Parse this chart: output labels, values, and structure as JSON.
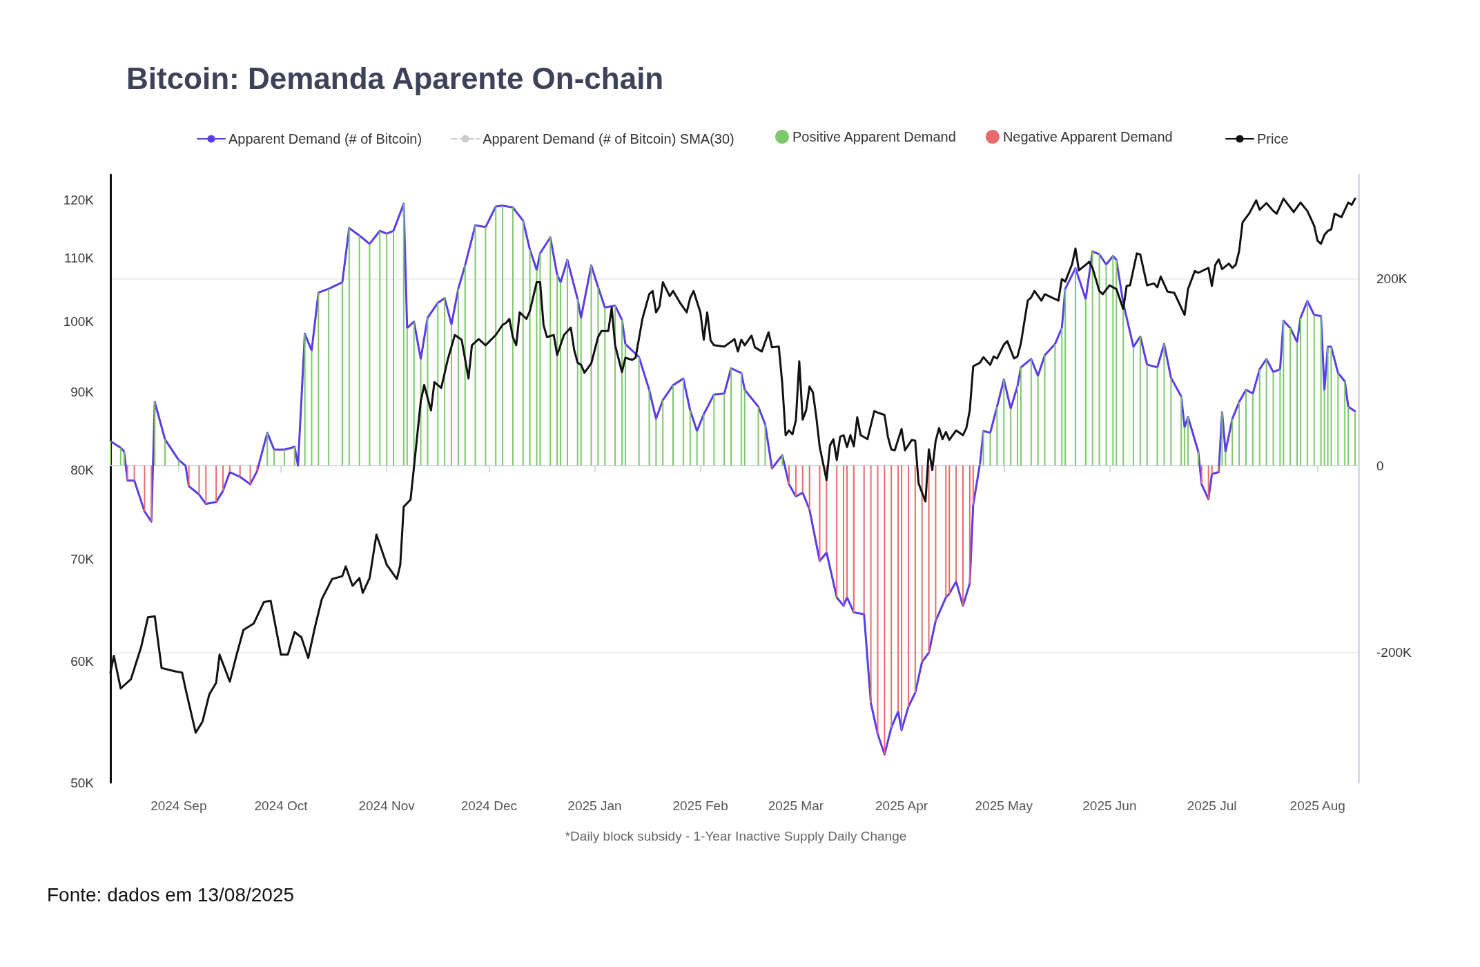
{
  "chart_data": {
    "type": "line",
    "title": "Bitcoin: Demanda Aparente On-chain",
    "annotations": [
      "*Daily block subsidy - 1-Year Inactive Supply Daily Change",
      "Fonte: dados em 13/08/2025"
    ],
    "xlim": [
      "2024-08-12",
      "2025-08-13"
    ],
    "xticks": [
      {
        "value": "2024-09-01",
        "label": "2024 Sep"
      },
      {
        "value": "2024-10-01",
        "label": "2024 Oct"
      },
      {
        "value": "2024-11-01",
        "label": "2024 Nov"
      },
      {
        "value": "2024-12-01",
        "label": "2024 Dec"
      },
      {
        "value": "2025-01-01",
        "label": "2025 Jan"
      },
      {
        "value": "2025-02-01",
        "label": "2025 Feb"
      },
      {
        "value": "2025-03-01",
        "label": "2025 Mar"
      },
      {
        "value": "2025-04-01",
        "label": "2025 Apr"
      },
      {
        "value": "2025-05-01",
        "label": "2025 May"
      },
      {
        "value": "2025-06-01",
        "label": "2025 Jun"
      },
      {
        "value": "2025-07-01",
        "label": "2025 Jul"
      },
      {
        "value": "2025-08-01",
        "label": "2025 Aug"
      }
    ],
    "ylim": [
      50,
      124.7
    ],
    "yticks": [
      {
        "value": 50,
        "label": "50K"
      },
      {
        "value": 60,
        "label": "60K"
      },
      {
        "value": 70,
        "label": "70K"
      },
      {
        "value": 80,
        "label": "80K"
      },
      {
        "value": 90,
        "label": "90K"
      },
      {
        "value": 100,
        "label": "100K"
      },
      {
        "value": 110,
        "label": "110K"
      },
      {
        "value": 120,
        "label": "120K"
      }
    ],
    "y2lim": [
      -339,
      311
    ],
    "y2ticks": [
      {
        "value": -200,
        "label": "-200K"
      },
      0,
      {
        "value": 200,
        "label": "200K"
      }
    ],
    "log": "y",
    "grid": "y",
    "legend": "top",
    "marker": "none",
    "line_style": "solid",
    "series": [
      {
        "name": "Apparent Demand (# of Bitcoin)",
        "axis": "y2",
        "color": "#5b3ce6",
        "x": [
          "2024-08-12",
          "2024-08-15",
          "2024-08-16",
          "2024-08-17",
          "2024-08-19",
          "2024-08-22",
          "2024-08-24",
          "2024-08-25",
          "2024-08-28",
          "2024-09-01",
          "2024-09-03",
          "2024-09-04",
          "2024-09-07",
          "2024-09-09",
          "2024-09-12",
          "2024-09-14",
          "2024-09-16",
          "2024-09-19",
          "2024-09-22",
          "2024-09-24",
          "2024-09-27",
          "2024-09-29",
          "2024-10-02",
          "2024-10-05",
          "2024-10-06",
          "2024-10-08",
          "2024-10-10",
          "2024-10-12",
          "2024-10-15",
          "2024-10-19",
          "2024-10-21",
          "2024-10-24",
          "2024-10-27",
          "2024-10-30",
          "2024-11-01",
          "2024-11-03",
          "2024-11-06",
          "2024-11-07",
          "2024-11-09",
          "2024-11-11",
          "2024-11-13",
          "2024-11-16",
          "2024-11-18",
          "2024-11-20",
          "2024-11-22",
          "2024-11-24",
          "2024-11-27",
          "2024-11-30",
          "2024-12-03",
          "2024-12-05",
          "2024-12-08",
          "2024-12-11",
          "2024-12-13",
          "2024-12-15",
          "2024-12-16",
          "2024-12-19",
          "2024-12-21",
          "2024-12-22",
          "2024-12-24",
          "2024-12-27",
          "2024-12-28",
          "2024-12-31",
          "2025-01-02",
          "2025-01-04",
          "2025-01-07",
          "2025-01-09",
          "2025-01-10",
          "2025-01-14",
          "2025-01-17",
          "2025-01-19",
          "2025-01-21",
          "2025-01-24",
          "2025-01-27",
          "2025-01-29",
          "2025-01-31",
          "2025-02-02",
          "2025-02-05",
          "2025-02-08",
          "2025-02-10",
          "2025-02-13",
          "2025-02-14",
          "2025-02-18",
          "2025-02-20",
          "2025-02-22",
          "2025-02-25",
          "2025-02-27",
          "2025-03-01",
          "2025-03-03",
          "2025-03-05",
          "2025-03-08",
          "2025-03-10",
          "2025-03-13",
          "2025-03-15",
          "2025-03-16",
          "2025-03-18",
          "2025-03-21",
          "2025-03-23",
          "2025-03-25",
          "2025-03-27",
          "2025-03-29",
          "2025-03-31",
          "2025-04-01",
          "2025-04-03",
          "2025-04-05",
          "2025-04-07",
          "2025-04-09",
          "2025-04-11",
          "2025-04-14",
          "2025-04-15",
          "2025-04-17",
          "2025-04-19",
          "2025-04-21",
          "2025-04-22",
          "2025-04-24",
          "2025-04-25",
          "2025-04-27",
          "2025-04-29",
          "2025-05-01",
          "2025-05-03",
          "2025-05-05",
          "2025-05-06",
          "2025-05-09",
          "2025-05-11",
          "2025-05-13",
          "2025-05-16",
          "2025-05-18",
          "2025-05-19",
          "2025-05-22",
          "2025-05-25",
          "2025-05-27",
          "2025-05-29",
          "2025-05-31",
          "2025-06-02",
          "2025-06-03",
          "2025-06-05",
          "2025-06-08",
          "2025-06-10",
          "2025-06-12",
          "2025-06-15",
          "2025-06-17",
          "2025-06-19",
          "2025-06-22",
          "2025-06-23",
          "2025-06-24",
          "2025-06-27",
          "2025-06-28",
          "2025-06-30",
          "2025-07-01",
          "2025-07-03",
          "2025-07-04",
          "2025-07-05",
          "2025-07-07",
          "2025-07-09",
          "2025-07-11",
          "2025-07-13",
          "2025-07-15",
          "2025-07-17",
          "2025-07-19",
          "2025-07-21",
          "2025-07-22",
          "2025-07-24",
          "2025-07-26",
          "2025-07-27",
          "2025-07-29",
          "2025-07-31",
          "2025-08-02",
          "2025-08-03",
          "2025-08-04",
          "2025-08-05",
          "2025-08-07",
          "2025-08-09",
          "2025-08-10",
          "2025-08-12"
        ],
        "values": [
          26,
          19,
          15,
          -16,
          -16,
          -49,
          -60,
          68,
          28,
          6,
          0,
          -22,
          -31,
          -41,
          -39,
          -27,
          -7,
          -12,
          -20,
          -6,
          35,
          17,
          17,
          20,
          0,
          141,
          123,
          185,
          189,
          196,
          254,
          246,
          237,
          251,
          248,
          251,
          280,
          147,
          154,
          114,
          158,
          174,
          179,
          151,
          189,
          214,
          257,
          255,
          277,
          278,
          276,
          262,
          231,
          209,
          227,
          244,
          204,
          196,
          220,
          178,
          158,
          214,
          191,
          169,
          171,
          156,
          130,
          116,
          81,
          50,
          70,
          86,
          93,
          59,
          37,
          55,
          76,
          77,
          104,
          99,
          81,
          63,
          44,
          -3,
          11,
          -20,
          -33,
          -29,
          -47,
          -102,
          -93,
          -141,
          -150,
          -141,
          -157,
          -159,
          -254,
          -287,
          -309,
          -280,
          -263,
          -283,
          -258,
          -243,
          -210,
          -200,
          -166,
          -141,
          -137,
          -124,
          -150,
          -126,
          -42,
          2,
          37,
          35,
          63,
          92,
          61,
          85,
          105,
          114,
          96,
          118,
          130,
          147,
          189,
          211,
          178,
          229,
          226,
          215,
          224,
          220,
          174,
          127,
          138,
          108,
          105,
          130,
          94,
          74,
          41,
          52,
          15,
          -20,
          -36,
          -9,
          -7,
          57,
          15,
          50,
          68,
          81,
          77,
          103,
          114,
          100,
          103,
          155,
          147,
          132,
          158,
          176,
          161,
          160,
          81,
          127,
          127,
          99,
          90,
          63,
          58
        ]
      },
      {
        "name": "Apparent Demand (# of Bitcoin) SMA(30)",
        "type": "line",
        "axis": "y2",
        "color": "#cccccc",
        "line_style": "dashed"
      },
      {
        "name": "Positive Apparent Demand",
        "type": "bar",
        "axis": "y2",
        "color": "#7cc86a",
        "x": [
          "2024-08-12",
          "2024-08-15",
          "2024-08-16",
          "2024-08-25",
          "2024-08-28",
          "2024-09-01",
          "2024-09-03",
          "2024-09-27",
          "2024-09-29",
          "2024-10-02",
          "2024-10-05",
          "2024-10-06",
          "2024-10-08",
          "2024-10-10",
          "2024-10-12",
          "2024-10-15",
          "2024-10-19",
          "2024-10-21",
          "2024-10-24",
          "2024-10-27",
          "2024-10-30",
          "2024-11-01",
          "2024-11-03",
          "2024-11-06",
          "2024-11-07",
          "2024-11-09",
          "2024-11-11",
          "2024-11-13",
          "2024-11-16",
          "2024-11-18",
          "2024-11-20",
          "2024-11-22",
          "2024-11-24",
          "2024-11-27",
          "2024-11-30",
          "2024-12-03",
          "2024-12-05",
          "2024-12-08",
          "2024-12-11",
          "2024-12-13",
          "2024-12-15",
          "2024-12-16",
          "2024-12-19",
          "2024-12-21",
          "2024-12-22",
          "2024-12-24",
          "2024-12-27",
          "2024-12-28",
          "2024-12-31",
          "2025-01-02",
          "2025-01-04",
          "2025-01-07",
          "2025-01-09",
          "2025-01-10",
          "2025-01-14",
          "2025-01-17",
          "2025-01-19",
          "2025-01-21",
          "2025-01-24",
          "2025-01-27",
          "2025-01-29",
          "2025-01-31",
          "2025-02-02",
          "2025-02-05",
          "2025-02-08",
          "2025-02-10",
          "2025-02-13",
          "2025-02-14",
          "2025-02-18",
          "2025-02-20",
          "2025-02-25",
          "2025-04-24",
          "2025-04-25",
          "2025-04-27",
          "2025-04-29",
          "2025-05-01",
          "2025-05-03",
          "2025-05-05",
          "2025-05-06",
          "2025-05-09",
          "2025-05-11",
          "2025-05-13",
          "2025-05-16",
          "2025-05-18",
          "2025-05-19",
          "2025-05-22",
          "2025-05-25",
          "2025-05-27",
          "2025-05-29",
          "2025-05-31",
          "2025-06-02",
          "2025-06-03",
          "2025-06-05",
          "2025-06-08",
          "2025-06-10",
          "2025-06-12",
          "2025-06-15",
          "2025-06-17",
          "2025-06-19",
          "2025-06-22",
          "2025-06-23",
          "2025-06-24",
          "2025-06-27",
          "2025-07-04",
          "2025-07-05",
          "2025-07-07",
          "2025-07-09",
          "2025-07-11",
          "2025-07-13",
          "2025-07-15",
          "2025-07-17",
          "2025-07-19",
          "2025-07-21",
          "2025-07-22",
          "2025-07-24",
          "2025-07-26",
          "2025-07-27",
          "2025-07-29",
          "2025-07-31",
          "2025-08-02",
          "2025-08-03",
          "2025-08-04",
          "2025-08-05",
          "2025-08-07",
          "2025-08-09",
          "2025-08-10",
          "2025-08-12"
        ],
        "values": [
          26,
          19,
          15,
          68,
          28,
          6,
          0,
          35,
          17,
          17,
          20,
          0,
          141,
          123,
          185,
          189,
          196,
          254,
          246,
          237,
          251,
          248,
          251,
          280,
          147,
          154,
          114,
          158,
          174,
          179,
          151,
          189,
          214,
          257,
          255,
          277,
          278,
          276,
          262,
          231,
          209,
          227,
          244,
          204,
          196,
          220,
          178,
          158,
          214,
          191,
          169,
          171,
          156,
          130,
          116,
          81,
          50,
          70,
          86,
          93,
          59,
          37,
          55,
          76,
          77,
          104,
          99,
          81,
          63,
          44,
          11,
          2,
          37,
          35,
          63,
          92,
          61,
          85,
          105,
          114,
          96,
          118,
          130,
          147,
          189,
          211,
          178,
          229,
          226,
          215,
          224,
          220,
          174,
          127,
          138,
          108,
          105,
          130,
          94,
          74,
          41,
          52,
          15,
          57,
          15,
          50,
          68,
          81,
          77,
          103,
          114,
          100,
          103,
          155,
          147,
          132,
          158,
          176,
          161,
          160,
          81,
          127,
          127,
          99,
          90,
          63,
          58
        ]
      },
      {
        "name": "Negative Apparent Demand",
        "type": "bar",
        "axis": "y2",
        "color": "#e86b6b",
        "x": [
          "2024-08-17",
          "2024-08-19",
          "2024-08-22",
          "2024-08-24",
          "2024-09-04",
          "2024-09-07",
          "2024-09-09",
          "2024-09-12",
          "2024-09-14",
          "2024-09-16",
          "2024-09-19",
          "2024-09-22",
          "2024-09-24",
          "2025-02-22",
          "2025-02-27",
          "2025-03-01",
          "2025-03-03",
          "2025-03-05",
          "2025-03-08",
          "2025-03-10",
          "2025-03-13",
          "2025-03-15",
          "2025-03-16",
          "2025-03-18",
          "2025-03-21",
          "2025-03-23",
          "2025-03-25",
          "2025-03-27",
          "2025-03-29",
          "2025-03-31",
          "2025-04-01",
          "2025-04-03",
          "2025-04-05",
          "2025-04-07",
          "2025-04-09",
          "2025-04-11",
          "2025-04-14",
          "2025-04-15",
          "2025-04-17",
          "2025-04-19",
          "2025-04-21",
          "2025-04-22",
          "2025-06-28",
          "2025-06-30",
          "2025-07-01",
          "2025-07-03"
        ],
        "values": [
          -16,
          -16,
          -49,
          -60,
          -22,
          -31,
          -41,
          -39,
          -27,
          -7,
          -12,
          -20,
          -6,
          -3,
          -20,
          -33,
          -29,
          -47,
          -102,
          -93,
          -141,
          -150,
          -141,
          -157,
          -159,
          -254,
          -287,
          -309,
          -280,
          -263,
          -283,
          -258,
          -243,
          -210,
          -200,
          -166,
          -141,
          -137,
          -124,
          -150,
          -126,
          -42,
          -20,
          -36,
          -9,
          -7
        ]
      },
      {
        "name": "Price",
        "axis": "y",
        "color": "#111111",
        "x": [
          "2024-08-12",
          "2024-08-13",
          "2024-08-15",
          "2024-08-18",
          "2024-08-21",
          "2024-08-23",
          "2024-08-25",
          "2024-08-27",
          "2024-08-31",
          "2024-09-02",
          "2024-09-03",
          "2024-09-06",
          "2024-09-08",
          "2024-09-10",
          "2024-09-12",
          "2024-09-13",
          "2024-09-16",
          "2024-09-18",
          "2024-09-20",
          "2024-09-23",
          "2024-09-26",
          "2024-09-28",
          "2024-10-01",
          "2024-10-03",
          "2024-10-05",
          "2024-10-07",
          "2024-10-09",
          "2024-10-11",
          "2024-10-13",
          "2024-10-16",
          "2024-10-19",
          "2024-10-20",
          "2024-10-22",
          "2024-10-24",
          "2024-10-25",
          "2024-10-27",
          "2024-10-29",
          "2024-11-01",
          "2024-11-04",
          "2024-11-05",
          "2024-11-06",
          "2024-11-08",
          "2024-11-09",
          "2024-11-11",
          "2024-11-12",
          "2024-11-14",
          "2024-11-15",
          "2024-11-17",
          "2024-11-19",
          "2024-11-21",
          "2024-11-23",
          "2024-11-25",
          "2024-11-26",
          "2024-11-28",
          "2024-11-30",
          "2024-12-03",
          "2024-12-05",
          "2024-12-06",
          "2024-12-07",
          "2024-12-08",
          "2024-12-09",
          "2024-12-10",
          "2024-12-12",
          "2024-12-13",
          "2024-12-15",
          "2024-12-16",
          "2024-12-17",
          "2024-12-18",
          "2024-12-20",
          "2024-12-21",
          "2024-12-23",
          "2024-12-25",
          "2024-12-26",
          "2024-12-27",
          "2024-12-28",
          "2024-12-29",
          "2024-12-31",
          "2025-01-02",
          "2025-01-03",
          "2025-01-05",
          "2025-01-06",
          "2025-01-07",
          "2025-01-09",
          "2025-01-10",
          "2025-01-12",
          "2025-01-13",
          "2025-01-15",
          "2025-01-17",
          "2025-01-18",
          "2025-01-19",
          "2025-01-20",
          "2025-01-21",
          "2025-01-23",
          "2025-01-24",
          "2025-01-26",
          "2025-01-28",
          "2025-01-29",
          "2025-01-30",
          "2025-02-01",
          "2025-02-02",
          "2025-02-03",
          "2025-02-04",
          "2025-02-05",
          "2025-02-08",
          "2025-02-11",
          "2025-02-12",
          "2025-02-13",
          "2025-02-14",
          "2025-02-16",
          "2025-02-17",
          "2025-02-19",
          "2025-02-21",
          "2025-02-22",
          "2025-02-24",
          "2025-02-25",
          "2025-02-26",
          "2025-02-27",
          "2025-02-28",
          "2025-03-01",
          "2025-03-02",
          "2025-03-03",
          "2025-03-04",
          "2025-03-05",
          "2025-03-06",
          "2025-03-07",
          "2025-03-08",
          "2025-03-10",
          "2025-03-11",
          "2025-03-12",
          "2025-03-13",
          "2025-03-14",
          "2025-03-15",
          "2025-03-16",
          "2025-03-17",
          "2025-03-18",
          "2025-03-19",
          "2025-03-20",
          "2025-03-22",
          "2025-03-24",
          "2025-03-25",
          "2025-03-27",
          "2025-03-28",
          "2025-03-29",
          "2025-03-30",
          "2025-04-01",
          "2025-04-02",
          "2025-04-04",
          "2025-04-05",
          "2025-04-06",
          "2025-04-08",
          "2025-04-09",
          "2025-04-10",
          "2025-04-11",
          "2025-04-12",
          "2025-04-13",
          "2025-04-14",
          "2025-04-15",
          "2025-04-17",
          "2025-04-19",
          "2025-04-20",
          "2025-04-21",
          "2025-04-22",
          "2025-04-24",
          "2025-04-25",
          "2025-04-27",
          "2025-04-28",
          "2025-04-29",
          "2025-05-01",
          "2025-05-02",
          "2025-05-04",
          "2025-05-05",
          "2025-05-06",
          "2025-05-08",
          "2025-05-09",
          "2025-05-10",
          "2025-05-12",
          "2025-05-13",
          "2025-05-15",
          "2025-05-17",
          "2025-05-18",
          "2025-05-19",
          "2025-05-21",
          "2025-05-22",
          "2025-05-23",
          "2025-05-25",
          "2025-05-26",
          "2025-05-27",
          "2025-05-29",
          "2025-05-30",
          "2025-06-01",
          "2025-06-03",
          "2025-06-05",
          "2025-06-06",
          "2025-06-07",
          "2025-06-09",
          "2025-06-10",
          "2025-06-12",
          "2025-06-14",
          "2025-06-15",
          "2025-06-16",
          "2025-06-18",
          "2025-06-20",
          "2025-06-23",
          "2025-06-24",
          "2025-06-26",
          "2025-06-27",
          "2025-06-30",
          "2025-07-01",
          "2025-07-02",
          "2025-07-03",
          "2025-07-04",
          "2025-07-06",
          "2025-07-07",
          "2025-07-08",
          "2025-07-09",
          "2025-07-10",
          "2025-07-12",
          "2025-07-14",
          "2025-07-15",
          "2025-07-17",
          "2025-07-19",
          "2025-07-20",
          "2025-07-22",
          "2025-07-24",
          "2025-07-25",
          "2025-07-27",
          "2025-07-29",
          "2025-07-31",
          "2025-08-01",
          "2025-08-02",
          "2025-08-03",
          "2025-08-04",
          "2025-08-05",
          "2025-08-06",
          "2025-08-08",
          "2025-08-10",
          "2025-08-11",
          "2025-08-12"
        ],
        "values": [
          59,
          60.5,
          57.6,
          58.4,
          61.3,
          64.1,
          64.2,
          59.4,
          59.1,
          59,
          57.6,
          53.9,
          54.8,
          57.1,
          58.1,
          60.6,
          58.2,
          60.6,
          62.9,
          63.5,
          65.6,
          65.7,
          60.6,
          60.6,
          62.7,
          62.2,
          60.3,
          63.2,
          65.9,
          67.9,
          68.2,
          69.2,
          67.2,
          68,
          66.5,
          68,
          72.6,
          69.4,
          67.9,
          69.4,
          75.7,
          76.5,
          80.3,
          88.7,
          90.9,
          87.5,
          91.3,
          90.5,
          94.6,
          98,
          97.3,
          91.8,
          96.5,
          97.4,
          96.5,
          98,
          99.5,
          99.8,
          100.4,
          97.7,
          96.5,
          101.4,
          100.4,
          101.6,
          106.1,
          106.1,
          99.5,
          97.7,
          98,
          95.1,
          98,
          99.1,
          95.8,
          94,
          93.7,
          92.6,
          93.9,
          97.7,
          98.6,
          98.6,
          102.1,
          96.5,
          92.7,
          94.7,
          94.4,
          94.7,
          100.4,
          104.2,
          104.7,
          101.4,
          102.3,
          106.1,
          103.9,
          104.7,
          102.9,
          101.4,
          103.6,
          104.7,
          101.4,
          97.3,
          101.4,
          97.2,
          96.5,
          96.3,
          97.4,
          95.6,
          97.3,
          96.5,
          97.9,
          96.2,
          95.6,
          98.4,
          96.2,
          96.3,
          91.2,
          84.3,
          84.9,
          84.4,
          86.2,
          94.2,
          86.3,
          87.5,
          90.7,
          89.9,
          86.6,
          82.8,
          78.8,
          83,
          83.8,
          81.2,
          84.1,
          84.3,
          82.8,
          84.3,
          82.9,
          86.6,
          84.3,
          83.8,
          87.4,
          87.2,
          86.9,
          84.1,
          82.5,
          82.4,
          85.1,
          82.4,
          83.7,
          83.6,
          78.4,
          76.3,
          82.5,
          80,
          83.6,
          85.2,
          83.8,
          84.7,
          83.7,
          84.9,
          84.3,
          85.2,
          87.5,
          93.5,
          94,
          94.8,
          93.7,
          94.9,
          94.6,
          96.6,
          97.1,
          94.6,
          94.9,
          96.8,
          103.2,
          103.7,
          104.7,
          103.2,
          104.2,
          103.7,
          103.2,
          106.6,
          106.2,
          109,
          111.6,
          108,
          108.9,
          109.4,
          108.4,
          104.7,
          104.2,
          105.6,
          105,
          101.9,
          105.5,
          105.6,
          110.8,
          110.6,
          105.6,
          105.9,
          105.3,
          107,
          104.6,
          104.4,
          101,
          105,
          107.9,
          107.6,
          108.4,
          105.5,
          108.9,
          109.8,
          108.2,
          109.1,
          108.4,
          108.9,
          111.2,
          116.1,
          117.7,
          120,
          118.3,
          119.5,
          118.1,
          117.6,
          120.3,
          118.7,
          117.9,
          119.6,
          118.1,
          115.5,
          112.9,
          112.4,
          113.9,
          114.6,
          114.9,
          117.6,
          117,
          119.6,
          119.2,
          120.3
        ]
      }
    ]
  }
}
